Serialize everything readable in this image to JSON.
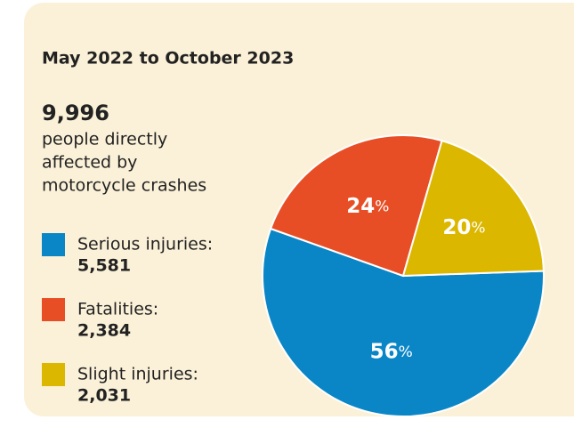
{
  "chart_data": {
    "type": "pie",
    "title": "May 2022 to October 2023",
    "total": {
      "value": 9996,
      "label": "9,996"
    },
    "subtitle": [
      "people directly",
      "affected by",
      "motorcycle crashes"
    ],
    "categories": [
      "Serious injuries:",
      "Fatalities:",
      "Slight injuries:"
    ],
    "values": [
      56,
      24,
      20
    ],
    "value_labels": [
      "56%",
      "24%",
      "20%"
    ],
    "colors": [
      "#0a86c6",
      "#e84e25",
      "#dcb700"
    ],
    "counts": [
      {
        "value": 5581,
        "label": "5,581"
      },
      {
        "value": 2384,
        "label": "2,384"
      },
      {
        "value": 2031,
        "label": "2,031"
      }
    ]
  }
}
